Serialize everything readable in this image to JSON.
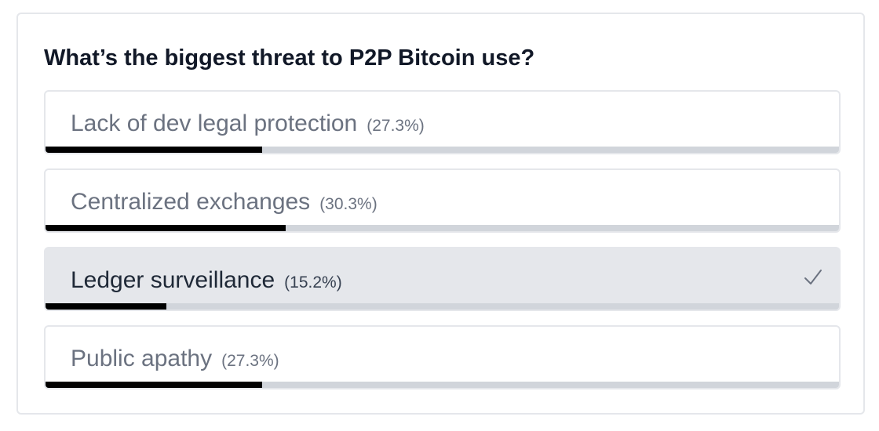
{
  "poll": {
    "question": "What’s the biggest threat to P2P Bitcoin use?",
    "options": [
      {
        "label": "Lack of dev legal protection",
        "percent_label": "(27.3%)",
        "percent": 27.3,
        "selected": false
      },
      {
        "label": "Centralized exchanges",
        "percent_label": "(30.3%)",
        "percent": 30.3,
        "selected": false
      },
      {
        "label": "Ledger surveillance",
        "percent_label": "(15.2%)",
        "percent": 15.2,
        "selected": true
      },
      {
        "label": "Public apathy",
        "percent_label": "(27.3%)",
        "percent": 27.3,
        "selected": false
      }
    ],
    "selected_icon": "check-icon",
    "colors": {
      "bar_fill": "#000000",
      "bar_track": "#d1d5db",
      "selected_background": "#e5e7eb"
    }
  }
}
